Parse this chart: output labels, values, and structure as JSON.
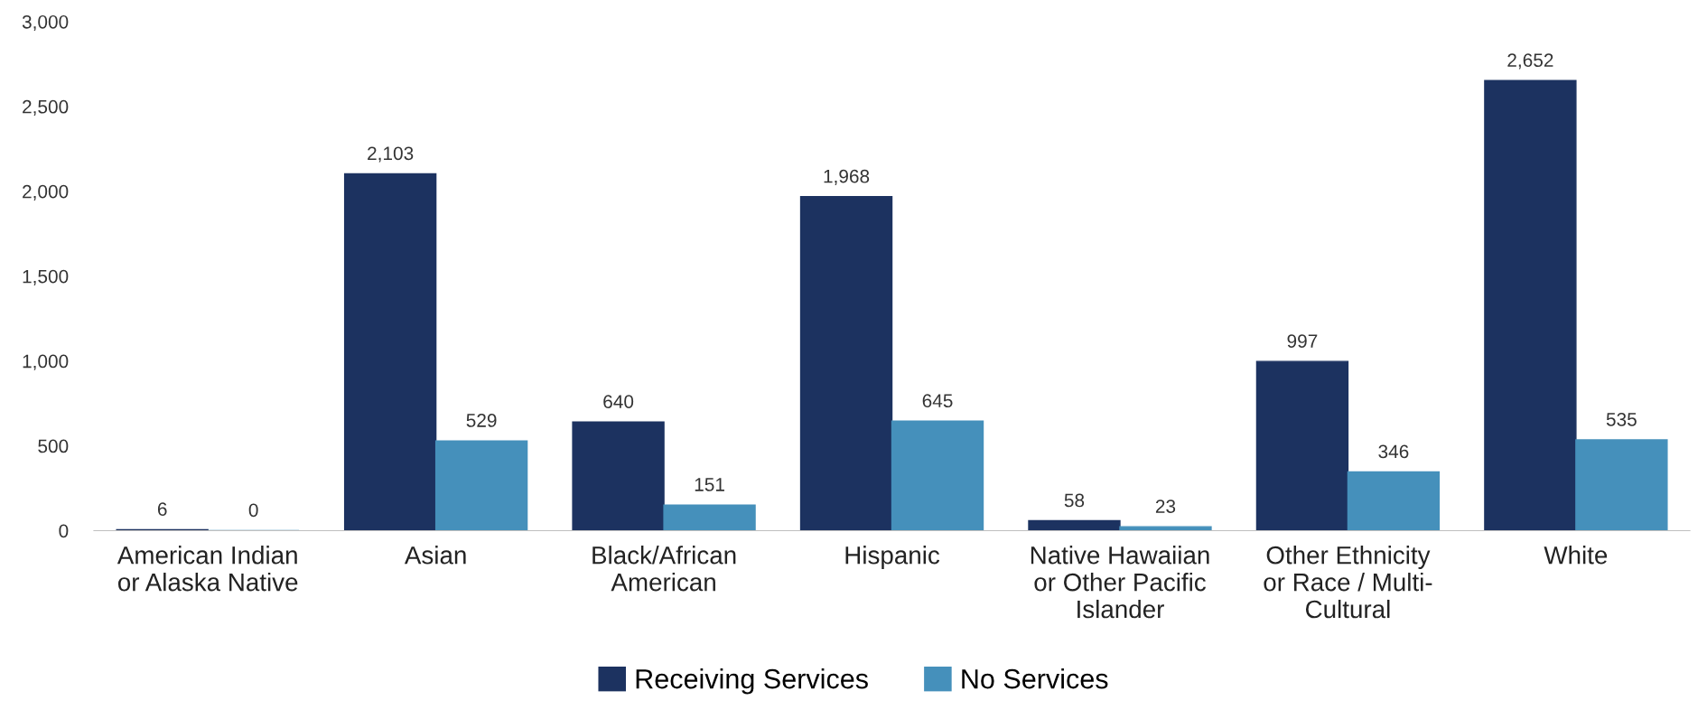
{
  "chart_data": {
    "type": "bar",
    "categories": [
      "American Indian\nor Alaska Native",
      "Asian",
      "Black/African\nAmerican",
      "Hispanic",
      "Native Hawaiian\nor Other Pacific\nIslander",
      "Other Ethnicity\nor Race / Multi-\nCultural",
      "White"
    ],
    "series": [
      {
        "name": "Receiving Services",
        "color": "#1c3260",
        "values": [
          6,
          2103,
          640,
          1968,
          58,
          997,
          2652
        ],
        "value_labels": [
          "6",
          "2,103",
          "640",
          "1,968",
          "58",
          "997",
          "2,652"
        ]
      },
      {
        "name": "No Services",
        "color": "#4590bb",
        "values": [
          0,
          529,
          151,
          645,
          23,
          346,
          535
        ],
        "value_labels": [
          "0",
          "529",
          "151",
          "645",
          "23",
          "346",
          "535"
        ]
      }
    ],
    "ylim": [
      0,
      3000
    ],
    "yticks": [
      0,
      500,
      {
        "value": 1000,
        "label": "1,000"
      },
      {
        "value": 1500,
        "label": "1,500"
      },
      {
        "value": 2000,
        "label": "2,000"
      },
      {
        "value": 2500,
        "label": "2,500"
      },
      {
        "value": 3000,
        "label": "3,000"
      }
    ],
    "grid": false,
    "legend": "bottom"
  }
}
